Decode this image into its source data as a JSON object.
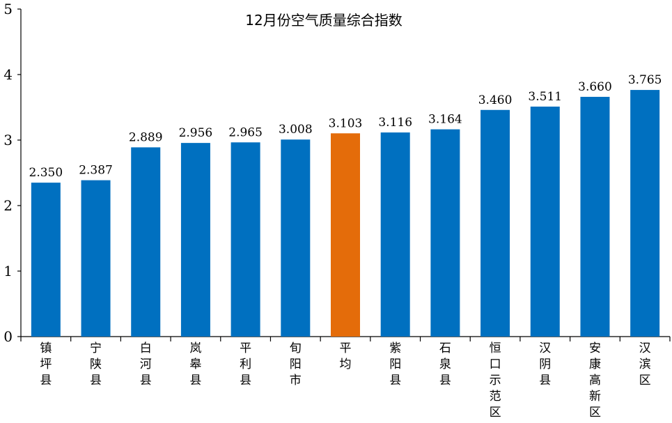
{
  "chart_data": {
    "type": "bar",
    "title": "12月份空气质量综合指数",
    "xlabel": "",
    "ylabel": "",
    "ylim": [
      0,
      5
    ],
    "yticks": [
      0,
      1,
      2,
      3,
      4,
      5
    ],
    "grid": false,
    "legend": "none",
    "categories": [
      "镇坪县",
      "宁陕县",
      "白河县",
      "岚皋县",
      "平利县",
      "旬阳市",
      "平均",
      "紫阳县",
      "石泉县",
      "恒口示范区",
      "汉阴县",
      "安康高新区",
      "汉滨区"
    ],
    "values": [
      2.35,
      2.387,
      2.889,
      2.956,
      2.965,
      3.008,
      3.103,
      3.116,
      3.164,
      3.46,
      3.511,
      3.66,
      3.765
    ],
    "value_labels": [
      "2.350",
      "2.387",
      "2.889",
      "2.956",
      "2.965",
      "3.008",
      "3.103",
      "3.116",
      "3.164",
      "3.460",
      "3.511",
      "3.660",
      "3.765"
    ],
    "bar_color": "#0070C0",
    "highlight_category": "平均",
    "highlight_color": "#E46C0A"
  }
}
